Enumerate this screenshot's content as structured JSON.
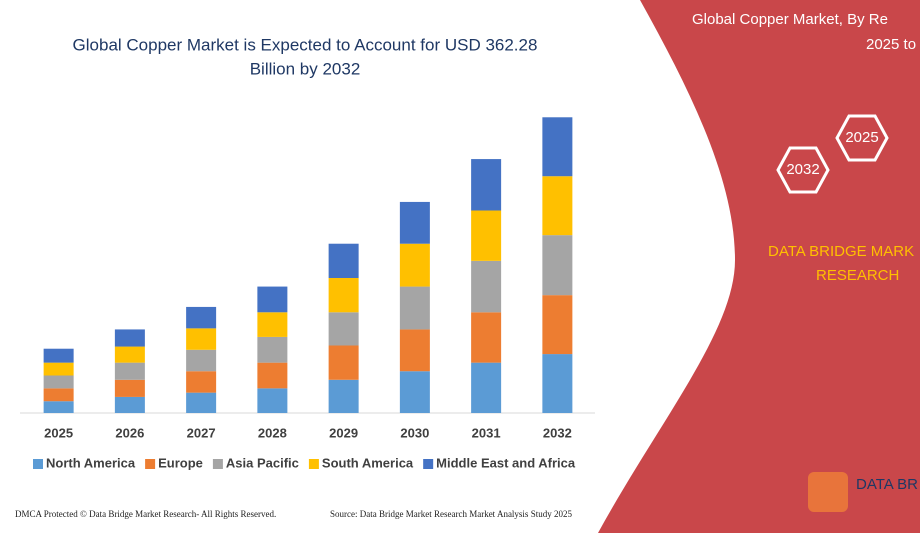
{
  "chart_data": {
    "type": "stacked_bar",
    "title": "Global Copper Market is Expected to Account for USD 362.28",
    "subtitle": "Billion by 2032",
    "categories": [
      "2025",
      "2026",
      "2027",
      "2028",
      "2029",
      "2030",
      "2031",
      "2032"
    ],
    "series": [
      {
        "name": "North America",
        "color": "#5b9bd5",
        "values": [
          11,
          15,
          19,
          23,
          31,
          39,
          47,
          55
        ]
      },
      {
        "name": "Europe",
        "color": "#ed7d31",
        "values": [
          12,
          16,
          20,
          24,
          32,
          39,
          47,
          55
        ]
      },
      {
        "name": "Asia Pacific",
        "color": "#a5a5a5",
        "values": [
          12,
          16,
          20,
          24,
          31,
          40,
          48,
          56
        ]
      },
      {
        "name": "South America",
        "color": "#ffc000",
        "values": [
          12,
          15,
          20,
          23,
          32,
          40,
          47,
          55
        ]
      },
      {
        "name": "Middle East and Africa",
        "color": "#4472c4",
        "values": [
          13,
          16,
          20,
          24,
          32,
          39,
          48,
          55
        ]
      }
    ],
    "ylim": [
      0,
      280
    ]
  },
  "panel": {
    "title": "Global Copper Market, By Re",
    "subtitle": "2025 to",
    "hex_start": "2025",
    "hex_end": "2032",
    "brand_line1": "DATA BRIDGE MARK",
    "brand_line2": "RESEARCH",
    "logo": "DATA BR"
  },
  "footer": {
    "left": "DMCA Protected © Data Bridge Market Research-  All Rights Reserved.",
    "right": "Source: Data Bridge Market Research  Market Analysis Study 2025"
  }
}
